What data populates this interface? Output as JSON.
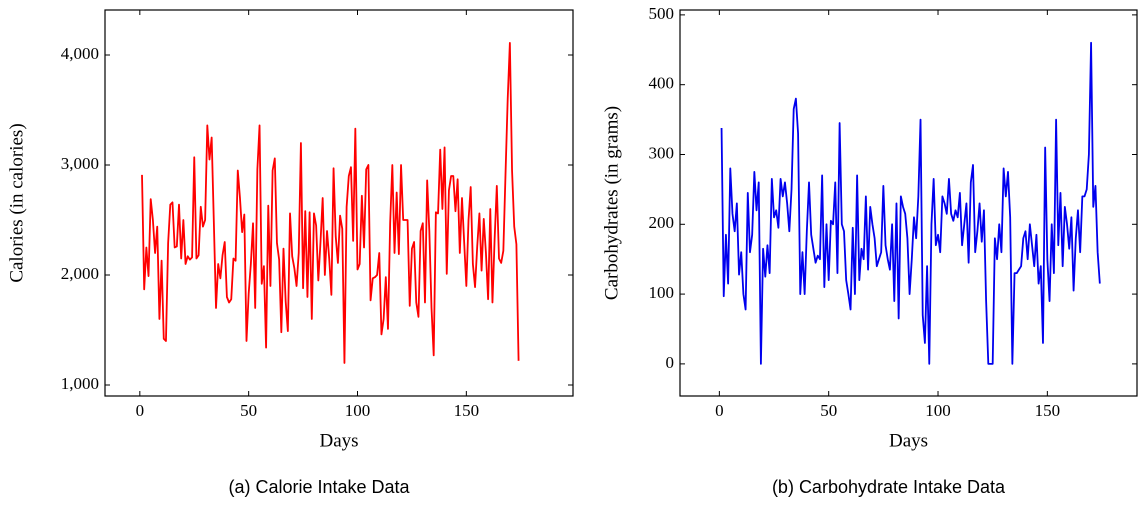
{
  "chart_data": [
    {
      "type": "line",
      "xlabel": "Days",
      "ylabel": "Calories (in calories)",
      "caption": "(a) Calorie Intake Data",
      "color": "#ff0000",
      "xlim": [
        -16,
        199
      ],
      "xticks": [
        0,
        50,
        100,
        150
      ],
      "ylim": [
        900,
        4409
      ],
      "yticks": [
        {
          "value": 1000,
          "label": "1,000"
        },
        {
          "value": 2000,
          "label": "2,000"
        },
        {
          "value": 3000,
          "label": "3,000"
        },
        {
          "value": 4000,
          "label": "4,000"
        }
      ],
      "x": [
        1,
        2,
        3,
        4,
        5,
        6,
        7,
        8,
        9,
        10,
        11,
        12,
        13,
        14,
        15,
        16,
        17,
        18,
        19,
        20,
        21,
        22,
        23,
        24,
        25,
        26,
        27,
        28,
        29,
        30,
        31,
        32,
        33,
        34,
        35,
        36,
        37,
        38,
        39,
        40,
        41,
        42,
        43,
        44,
        45,
        46,
        47,
        48,
        49,
        50,
        51,
        52,
        53,
        54,
        55,
        56,
        57,
        58,
        59,
        60,
        61,
        62,
        63,
        64,
        65,
        66,
        67,
        68,
        69,
        70,
        71,
        72,
        73,
        74,
        75,
        76,
        77,
        78,
        79,
        80,
        81,
        82,
        83,
        84,
        85,
        86,
        87,
        88,
        89,
        90,
        91,
        92,
        93,
        94,
        95,
        96,
        97,
        98,
        99,
        100,
        101,
        102,
        103,
        104,
        105,
        106,
        107,
        108,
        109,
        110,
        111,
        112,
        113,
        114,
        115,
        116,
        117,
        118,
        119,
        120,
        121,
        122,
        123,
        124,
        125,
        126,
        127,
        128,
        129,
        130,
        131,
        132,
        133,
        134,
        135,
        136,
        137,
        138,
        139,
        140,
        141,
        142,
        143,
        144,
        145,
        146,
        147,
        148,
        149,
        150,
        151,
        152,
        153,
        154,
        155,
        156,
        157,
        158,
        159,
        160,
        161,
        162,
        163,
        164,
        165,
        166,
        167,
        168,
        169,
        170,
        171,
        172,
        173,
        174
      ],
      "values": [
        2910,
        1870,
        2250,
        1990,
        2690,
        2500,
        2200,
        2440,
        1600,
        2130,
        1420,
        1400,
        2290,
        2640,
        2660,
        2250,
        2260,
        2640,
        2150,
        2500,
        2100,
        2170,
        2140,
        2160,
        3070,
        2150,
        2180,
        2620,
        2440,
        2500,
        3360,
        3050,
        3250,
        2480,
        1700,
        2100,
        1970,
        2180,
        2300,
        1800,
        1750,
        1780,
        2150,
        2130,
        2950,
        2700,
        2390,
        2550,
        1400,
        1830,
        2100,
        2470,
        1700,
        2960,
        3360,
        1920,
        2080,
        1340,
        2630,
        1900,
        2950,
        3060,
        2290,
        2140,
        1480,
        2240,
        1760,
        1490,
        2560,
        2170,
        2060,
        1900,
        2200,
        3200,
        1880,
        2580,
        1800,
        2570,
        1600,
        2560,
        2450,
        1950,
        2300,
        2700,
        2000,
        2400,
        2150,
        1820,
        2970,
        2350,
        2110,
        2540,
        2420,
        1200,
        2620,
        2900,
        2980,
        2310,
        3330,
        2050,
        2100,
        2720,
        2250,
        2960,
        3000,
        1770,
        1970,
        1980,
        2000,
        2200,
        1460,
        1600,
        1980,
        1510,
        2470,
        3000,
        2200,
        2750,
        2190,
        3000,
        2500,
        2500,
        2500,
        1720,
        2240,
        2300,
        1750,
        1620,
        2400,
        2470,
        1750,
        2860,
        2400,
        1700,
        1270,
        2570,
        2560,
        3140,
        2600,
        3160,
        2010,
        2770,
        2900,
        2900,
        2580,
        2870,
        2200,
        2700,
        2300,
        1900,
        2500,
        2800,
        2100,
        1890,
        2260,
        2560,
        2040,
        2510,
        2200,
        1780,
        2600,
        1750,
        2330,
        2810,
        2150,
        2110,
        2220,
        2920,
        3600,
        4110,
        2950,
        2440,
        2280,
        1220
      ]
    },
    {
      "type": "line",
      "xlabel": "Days",
      "ylabel": "Carbohydrates (in grams)",
      "caption": "(b) Carbohydrate Intake Data",
      "color": "#0000ee",
      "xlim": [
        -18,
        191
      ],
      "xticks": [
        0,
        50,
        100,
        150
      ],
      "ylim": [
        -46,
        507
      ],
      "yticks": [
        0,
        100,
        200,
        300,
        400,
        500
      ],
      "x": [
        1,
        2,
        3,
        4,
        5,
        6,
        7,
        8,
        9,
        10,
        11,
        12,
        13,
        14,
        15,
        16,
        17,
        18,
        19,
        20,
        21,
        22,
        23,
        24,
        25,
        26,
        27,
        28,
        29,
        30,
        31,
        32,
        33,
        34,
        35,
        36,
        37,
        38,
        39,
        40,
        41,
        42,
        43,
        44,
        45,
        46,
        47,
        48,
        49,
        50,
        51,
        52,
        53,
        54,
        55,
        56,
        57,
        58,
        59,
        60,
        61,
        62,
        63,
        64,
        65,
        66,
        67,
        68,
        69,
        70,
        71,
        72,
        73,
        74,
        75,
        76,
        77,
        78,
        79,
        80,
        81,
        82,
        83,
        84,
        85,
        86,
        87,
        88,
        89,
        90,
        91,
        92,
        93,
        94,
        95,
        96,
        97,
        98,
        99,
        100,
        101,
        102,
        103,
        104,
        105,
        106,
        107,
        108,
        109,
        110,
        111,
        112,
        113,
        114,
        115,
        116,
        117,
        118,
        119,
        120,
        121,
        122,
        123,
        124,
        125,
        126,
        127,
        128,
        129,
        130,
        131,
        132,
        133,
        134,
        135,
        136,
        137,
        138,
        139,
        140,
        141,
        142,
        143,
        144,
        145,
        146,
        147,
        148,
        149,
        150,
        151,
        152,
        153,
        154,
        155,
        156,
        157,
        158,
        159,
        160,
        161,
        162,
        163,
        164,
        165,
        166,
        167,
        168,
        169,
        170,
        171,
        172,
        173,
        174
      ],
      "values": [
        338,
        97,
        185,
        115,
        280,
        215,
        190,
        230,
        128,
        160,
        100,
        78,
        245,
        160,
        185,
        275,
        220,
        260,
        0,
        165,
        125,
        170,
        130,
        265,
        210,
        220,
        195,
        265,
        240,
        260,
        230,
        190,
        250,
        365,
        380,
        330,
        100,
        160,
        100,
        190,
        260,
        185,
        165,
        145,
        155,
        150,
        270,
        110,
        200,
        120,
        205,
        200,
        260,
        130,
        345,
        200,
        190,
        120,
        100,
        78,
        195,
        100,
        270,
        120,
        165,
        150,
        240,
        135,
        225,
        200,
        180,
        140,
        150,
        160,
        255,
        170,
        150,
        135,
        200,
        90,
        230,
        65,
        240,
        225,
        215,
        180,
        100,
        150,
        210,
        180,
        240,
        350,
        70,
        30,
        140,
        0,
        200,
        265,
        170,
        185,
        160,
        240,
        230,
        215,
        265,
        215,
        205,
        220,
        210,
        245,
        170,
        200,
        230,
        145,
        260,
        285,
        160,
        190,
        230,
        175,
        220,
        90,
        0,
        0,
        0,
        180,
        150,
        200,
        160,
        280,
        240,
        275,
        210,
        0,
        130,
        130,
        135,
        140,
        180,
        190,
        150,
        200,
        170,
        140,
        185,
        115,
        140,
        30,
        310,
        150,
        90,
        200,
        130,
        350,
        170,
        245,
        140,
        225,
        200,
        165,
        210,
        105,
        180,
        220,
        160,
        240,
        240,
        250,
        300,
        460,
        225,
        255,
        160,
        115
      ]
    }
  ]
}
